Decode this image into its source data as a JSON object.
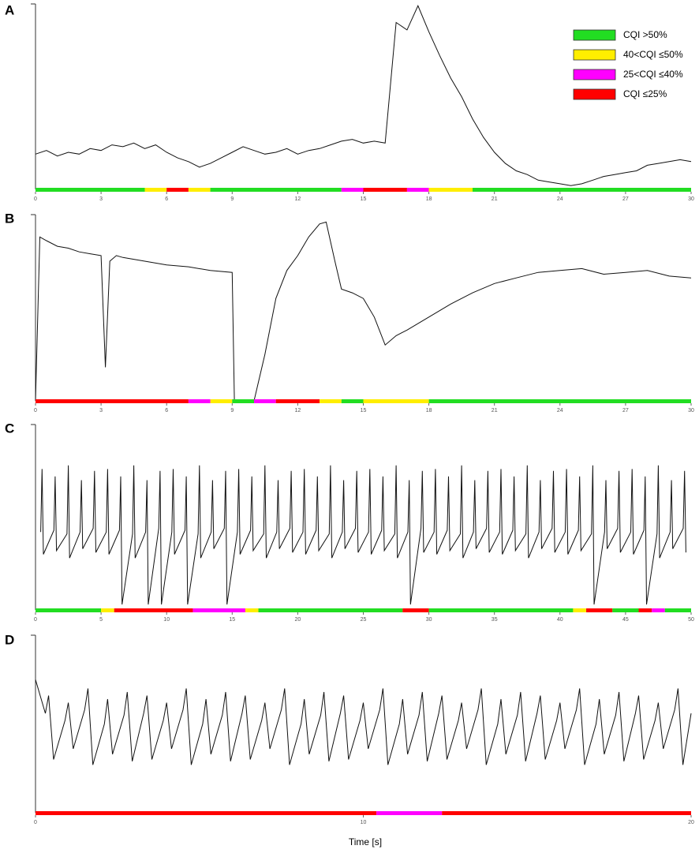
{
  "chart_data": [
    {
      "type": "line",
      "panel": "A",
      "xlim": [
        0,
        30
      ],
      "ylim": [
        0,
        100
      ],
      "xticks": [
        0,
        3,
        6,
        9,
        12,
        15,
        18,
        21,
        24,
        27,
        30
      ],
      "line_color": "#111111",
      "x": [
        0,
        0.5,
        1,
        1.5,
        2,
        2.5,
        3,
        3.5,
        4,
        4.5,
        5,
        5.5,
        6,
        6.5,
        7,
        7.5,
        8,
        8.5,
        9,
        9.5,
        10,
        10.5,
        11,
        11.5,
        12,
        12.5,
        13,
        13.5,
        14,
        14.5,
        15,
        15.5,
        16,
        16.5,
        17,
        17.5,
        18,
        18.5,
        19,
        19.5,
        20,
        20.5,
        21,
        21.5,
        22,
        22.5,
        23,
        23.5,
        24,
        24.5,
        25,
        25.5,
        26,
        26.5,
        27,
        27.5,
        28,
        28.5,
        29,
        29.5,
        30
      ],
      "values": [
        19,
        21,
        18,
        20,
        19,
        22,
        21,
        24,
        23,
        25,
        22,
        24,
        20,
        17,
        15,
        12,
        14,
        17,
        20,
        23,
        21,
        19,
        20,
        22,
        19,
        21,
        22,
        24,
        26,
        27,
        25,
        26,
        25,
        90,
        86,
        99,
        85,
        72,
        60,
        50,
        38,
        28,
        20,
        14,
        10,
        8,
        5,
        4,
        3,
        2,
        3,
        5,
        7,
        8,
        9,
        10,
        13,
        14,
        15,
        16,
        15
      ],
      "cqi_bands": [
        {
          "start": 0,
          "end": 5,
          "color": "#22dd22"
        },
        {
          "start": 5,
          "end": 6,
          "color": "#ffee00"
        },
        {
          "start": 6,
          "end": 7,
          "color": "#ff0000"
        },
        {
          "start": 7,
          "end": 8,
          "color": "#ffee00"
        },
        {
          "start": 8,
          "end": 14,
          "color": "#22dd22"
        },
        {
          "start": 14,
          "end": 15,
          "color": "#ff00ff"
        },
        {
          "start": 15,
          "end": 17,
          "color": "#ff0000"
        },
        {
          "start": 17,
          "end": 18,
          "color": "#ff00ff"
        },
        {
          "start": 18,
          "end": 20,
          "color": "#ffee00"
        },
        {
          "start": 20,
          "end": 30,
          "color": "#22dd22"
        }
      ],
      "legend": [
        {
          "label": "CQI >50%",
          "color": "#22dd22"
        },
        {
          "label": "40<CQI ≤50%",
          "color": "#ffee00"
        },
        {
          "label": "25<CQI ≤40%",
          "color": "#ff00ff"
        },
        {
          "label": "CQI ≤25%",
          "color": "#ff0000"
        }
      ]
    },
    {
      "type": "line",
      "panel": "B",
      "xlim": [
        0,
        30
      ],
      "ylim": [
        0,
        100
      ],
      "xticks": [
        0,
        3,
        6,
        9,
        12,
        15,
        18,
        21,
        24,
        27,
        30
      ],
      "line_color": "#111111",
      "x": [
        0,
        0.2,
        0.5,
        1,
        1.5,
        2,
        2.5,
        3,
        3.2,
        3.4,
        3.7,
        4,
        5,
        6,
        7,
        8,
        9,
        9.1,
        9.2,
        10,
        10.5,
        11,
        11.5,
        12,
        12.5,
        13,
        13.3,
        13.7,
        14,
        14.5,
        15,
        15.5,
        16,
        16.5,
        17,
        18,
        19,
        20,
        21,
        22,
        23,
        24,
        25,
        26,
        27,
        28,
        29,
        30
      ],
      "values": [
        0,
        88,
        86,
        83,
        82,
        80,
        79,
        78,
        18,
        75,
        78,
        77,
        75,
        73,
        72,
        70,
        69,
        0,
        0,
        0,
        25,
        55,
        70,
        78,
        88,
        95,
        96,
        75,
        60,
        58,
        55,
        45,
        30,
        35,
        38,
        45,
        52,
        58,
        63,
        66,
        69,
        70,
        71,
        68,
        69,
        70,
        67,
        66
      ],
      "cqi_bands": [
        {
          "start": 0,
          "end": 7,
          "color": "#ff0000"
        },
        {
          "start": 7,
          "end": 8,
          "color": "#ff00ff"
        },
        {
          "start": 8,
          "end": 9,
          "color": "#ffee00"
        },
        {
          "start": 9,
          "end": 10,
          "color": "#22dd22"
        },
        {
          "start": 10,
          "end": 11,
          "color": "#ff00ff"
        },
        {
          "start": 11,
          "end": 13,
          "color": "#ff0000"
        },
        {
          "start": 13,
          "end": 14,
          "color": "#ffee00"
        },
        {
          "start": 14,
          "end": 15,
          "color": "#22dd22"
        },
        {
          "start": 15,
          "end": 18,
          "color": "#ffee00"
        },
        {
          "start": 18,
          "end": 30,
          "color": "#22dd22"
        }
      ]
    },
    {
      "type": "line",
      "panel": "C",
      "xlim": [
        0,
        50
      ],
      "ylim": [
        0,
        100
      ],
      "xticks": [
        0,
        5,
        10,
        15,
        20,
        25,
        30,
        35,
        40,
        45,
        50
      ],
      "line_color": "#111111",
      "x": [
        0.4,
        0.5,
        0.6,
        1.4,
        1.5,
        1.6,
        2.4,
        2.5,
        2.6,
        3.4,
        3.5,
        3.6,
        4.4,
        4.5,
        4.6,
        5.4,
        5.5,
        5.6,
        6.4,
        6.5,
        6.6,
        7.4,
        7.5,
        7.6,
        8.4,
        8.5,
        8.6,
        9.4,
        9.5,
        9.6,
        10.4,
        10.5,
        10.6,
        11.4,
        11.5,
        11.6,
        12.4,
        12.5,
        12.6,
        13.4,
        13.5,
        13.6,
        14.4,
        14.5,
        14.6,
        15.4,
        15.5,
        15.6,
        16.4,
        16.5,
        16.6,
        17.4,
        17.5,
        17.6,
        18.4,
        18.5,
        18.6,
        19.4,
        19.5,
        19.6,
        20.4,
        20.5,
        20.6,
        21.4,
        21.5,
        21.6,
        22.4,
        22.5,
        22.6,
        23.4,
        23.5,
        23.6,
        24.4,
        24.5,
        24.6,
        25.4,
        25.5,
        25.6,
        26.4,
        26.5,
        26.6,
        27.4,
        27.5,
        27.6,
        28.4,
        28.5,
        28.6,
        29.4,
        29.5,
        29.6,
        30.4,
        30.5,
        30.6,
        31.4,
        31.5,
        31.6,
        32.4,
        32.5,
        32.6,
        33.4,
        33.5,
        33.6,
        34.4,
        34.5,
        34.6,
        35.4,
        35.5,
        35.6,
        36.4,
        36.5,
        36.6,
        37.4,
        37.5,
        37.6,
        38.4,
        38.5,
        38.6,
        39.4,
        39.5,
        39.6,
        40.4,
        40.5,
        40.6,
        41.4,
        41.5,
        41.6,
        42.4,
        42.5,
        42.6,
        43.4,
        43.5,
        43.6,
        44.4,
        44.5,
        44.6,
        45.4,
        45.5,
        45.6,
        46.4,
        46.5,
        46.6,
        47.4,
        47.5,
        47.6,
        48.4,
        48.5,
        48.6,
        49.4,
        49.5,
        49.6
      ],
      "values": [
        42,
        76,
        30,
        43,
        72,
        32,
        41,
        78,
        28,
        42,
        70,
        33,
        44,
        75,
        31,
        42,
        76,
        30,
        43,
        72,
        3,
        41,
        78,
        28,
        42,
        70,
        3,
        44,
        75,
        3,
        42,
        76,
        30,
        43,
        72,
        3,
        41,
        78,
        28,
        42,
        70,
        33,
        44,
        75,
        3,
        42,
        76,
        30,
        43,
        72,
        32,
        41,
        78,
        28,
        42,
        70,
        33,
        44,
        75,
        31,
        42,
        76,
        30,
        43,
        72,
        32,
        41,
        78,
        28,
        42,
        70,
        33,
        44,
        75,
        31,
        42,
        76,
        30,
        43,
        72,
        32,
        41,
        78,
        28,
        42,
        70,
        3,
        44,
        75,
        31,
        42,
        76,
        30,
        43,
        72,
        32,
        41,
        78,
        28,
        42,
        70,
        33,
        44,
        75,
        31,
        42,
        76,
        30,
        43,
        72,
        32,
        41,
        78,
        28,
        42,
        70,
        33,
        44,
        75,
        31,
        42,
        76,
        30,
        43,
        72,
        32,
        41,
        78,
        3,
        42,
        70,
        33,
        44,
        75,
        31,
        42,
        76,
        30,
        43,
        72,
        3,
        41,
        78,
        28,
        42,
        70,
        33,
        44,
        75,
        31
      ],
      "cqi_bands": [
        {
          "start": 0,
          "end": 5,
          "color": "#22dd22"
        },
        {
          "start": 5,
          "end": 6,
          "color": "#ffee00"
        },
        {
          "start": 6,
          "end": 12,
          "color": "#ff0000"
        },
        {
          "start": 12,
          "end": 16,
          "color": "#ff00ff"
        },
        {
          "start": 16,
          "end": 17,
          "color": "#ffee00"
        },
        {
          "start": 17,
          "end": 28,
          "color": "#22dd22"
        },
        {
          "start": 28,
          "end": 30,
          "color": "#ff0000"
        },
        {
          "start": 30,
          "end": 41,
          "color": "#22dd22"
        },
        {
          "start": 41,
          "end": 42,
          "color": "#ffee00"
        },
        {
          "start": 42,
          "end": 44,
          "color": "#ff0000"
        },
        {
          "start": 44,
          "end": 46,
          "color": "#22dd22"
        },
        {
          "start": 46,
          "end": 47,
          "color": "#ff0000"
        },
        {
          "start": 47,
          "end": 48,
          "color": "#ff00ff"
        },
        {
          "start": 48,
          "end": 50,
          "color": "#22dd22"
        }
      ]
    },
    {
      "type": "line",
      "panel": "D",
      "xlim": [
        0,
        20
      ],
      "ylim": [
        0,
        100
      ],
      "xticks": [
        0,
        10,
        20
      ],
      "line_color": "#111111",
      "xlabel": "Time [s]",
      "x": [
        0,
        0.3,
        0.4,
        0.55,
        0.9,
        1,
        1.15,
        1.5,
        1.6,
        1.75,
        2.1,
        2.2,
        2.35,
        2.7,
        2.8,
        2.95,
        3.3,
        3.4,
        3.55,
        3.9,
        4,
        4.15,
        4.5,
        4.6,
        4.75,
        5.1,
        5.2,
        5.35,
        5.7,
        5.8,
        5.95,
        6.3,
        6.4,
        6.55,
        6.9,
        7,
        7.15,
        7.5,
        7.6,
        7.75,
        8.1,
        8.2,
        8.35,
        8.7,
        8.8,
        8.95,
        9.3,
        9.4,
        9.55,
        9.9,
        10,
        10.15,
        10.5,
        10.6,
        10.75,
        11.1,
        11.2,
        11.35,
        11.7,
        11.8,
        11.95,
        12.3,
        12.4,
        12.55,
        12.9,
        13,
        13.15,
        13.5,
        13.6,
        13.75,
        14.1,
        14.2,
        14.35,
        14.7,
        14.8,
        14.95,
        15.3,
        15.4,
        15.55,
        15.9,
        16,
        16.15,
        16.5,
        16.6,
        16.75,
        17.1,
        17.2,
        17.35,
        17.7,
        17.8,
        17.95,
        18.3,
        18.4,
        18.55,
        18.9,
        19,
        19.15,
        19.5,
        19.6,
        19.75,
        20
      ],
      "values": [
        75,
        56,
        66,
        30,
        52,
        62,
        36,
        58,
        70,
        27,
        50,
        64,
        33,
        55,
        68,
        29,
        56,
        66,
        30,
        52,
        62,
        36,
        58,
        70,
        27,
        50,
        64,
        33,
        55,
        68,
        29,
        56,
        66,
        30,
        52,
        62,
        36,
        58,
        70,
        27,
        50,
        64,
        33,
        55,
        68,
        29,
        56,
        66,
        30,
        52,
        62,
        36,
        58,
        70,
        27,
        50,
        64,
        33,
        55,
        68,
        29,
        56,
        66,
        30,
        52,
        62,
        36,
        58,
        70,
        27,
        50,
        64,
        33,
        55,
        68,
        29,
        56,
        66,
        30,
        52,
        62,
        36,
        58,
        70,
        27,
        50,
        64,
        33,
        55,
        68,
        29,
        56,
        66,
        30,
        52,
        62,
        36,
        58,
        70,
        27,
        56
      ],
      "cqi_bands": [
        {
          "start": 0,
          "end": 10.4,
          "color": "#ff0000"
        },
        {
          "start": 10.4,
          "end": 12.4,
          "color": "#ff00ff"
        },
        {
          "start": 12.4,
          "end": 20,
          "color": "#ff0000"
        }
      ]
    }
  ]
}
